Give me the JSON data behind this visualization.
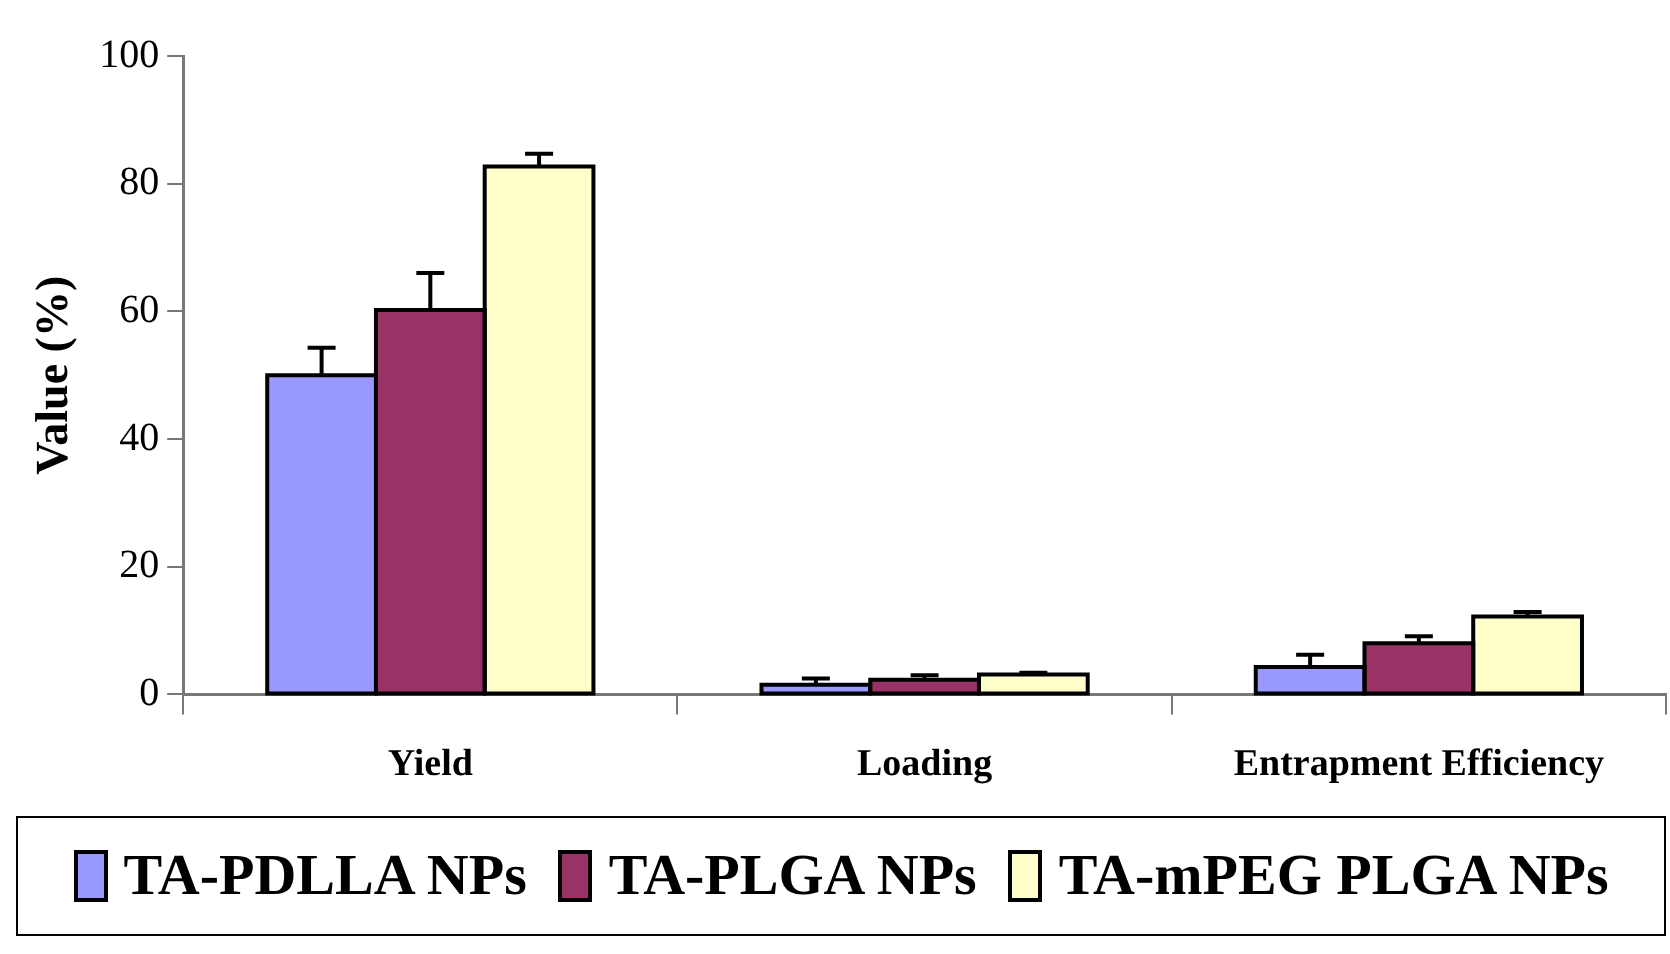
{
  "chart_data": {
    "type": "bar",
    "ylabel": "Value (%)",
    "categories": [
      "Yield",
      "Loading",
      "Entrapment Efficiency"
    ],
    "series": [
      {
        "name": "TA-PDLLA NPs",
        "color": "#9999ff",
        "values": [
          50,
          1.5,
          4.3
        ],
        "errors": [
          [
            50,
            54.3
          ],
          [
            1.5,
            2.5
          ],
          [
            4.3,
            6.2
          ]
        ]
      },
      {
        "name": "TA-PLGA NPs",
        "color": "#993366",
        "values": [
          60.2,
          2.3,
          8
        ],
        "errors": [
          [
            60.2,
            66
          ],
          [
            2.3,
            3
          ],
          [
            8,
            9.1
          ]
        ]
      },
      {
        "name": "TA-mPEG PLGA NPs",
        "color": "#ffffcc",
        "values": [
          82.7,
          3.1,
          12.2
        ],
        "errors": [
          [
            82.7,
            84.7
          ],
          [
            3.1,
            3.4
          ],
          [
            12.2,
            12.9
          ]
        ]
      }
    ],
    "ylim": [
      0,
      100
    ],
    "yticks": [
      0,
      20,
      40,
      60,
      80,
      100
    ],
    "grid": false,
    "legend": "bottom"
  }
}
